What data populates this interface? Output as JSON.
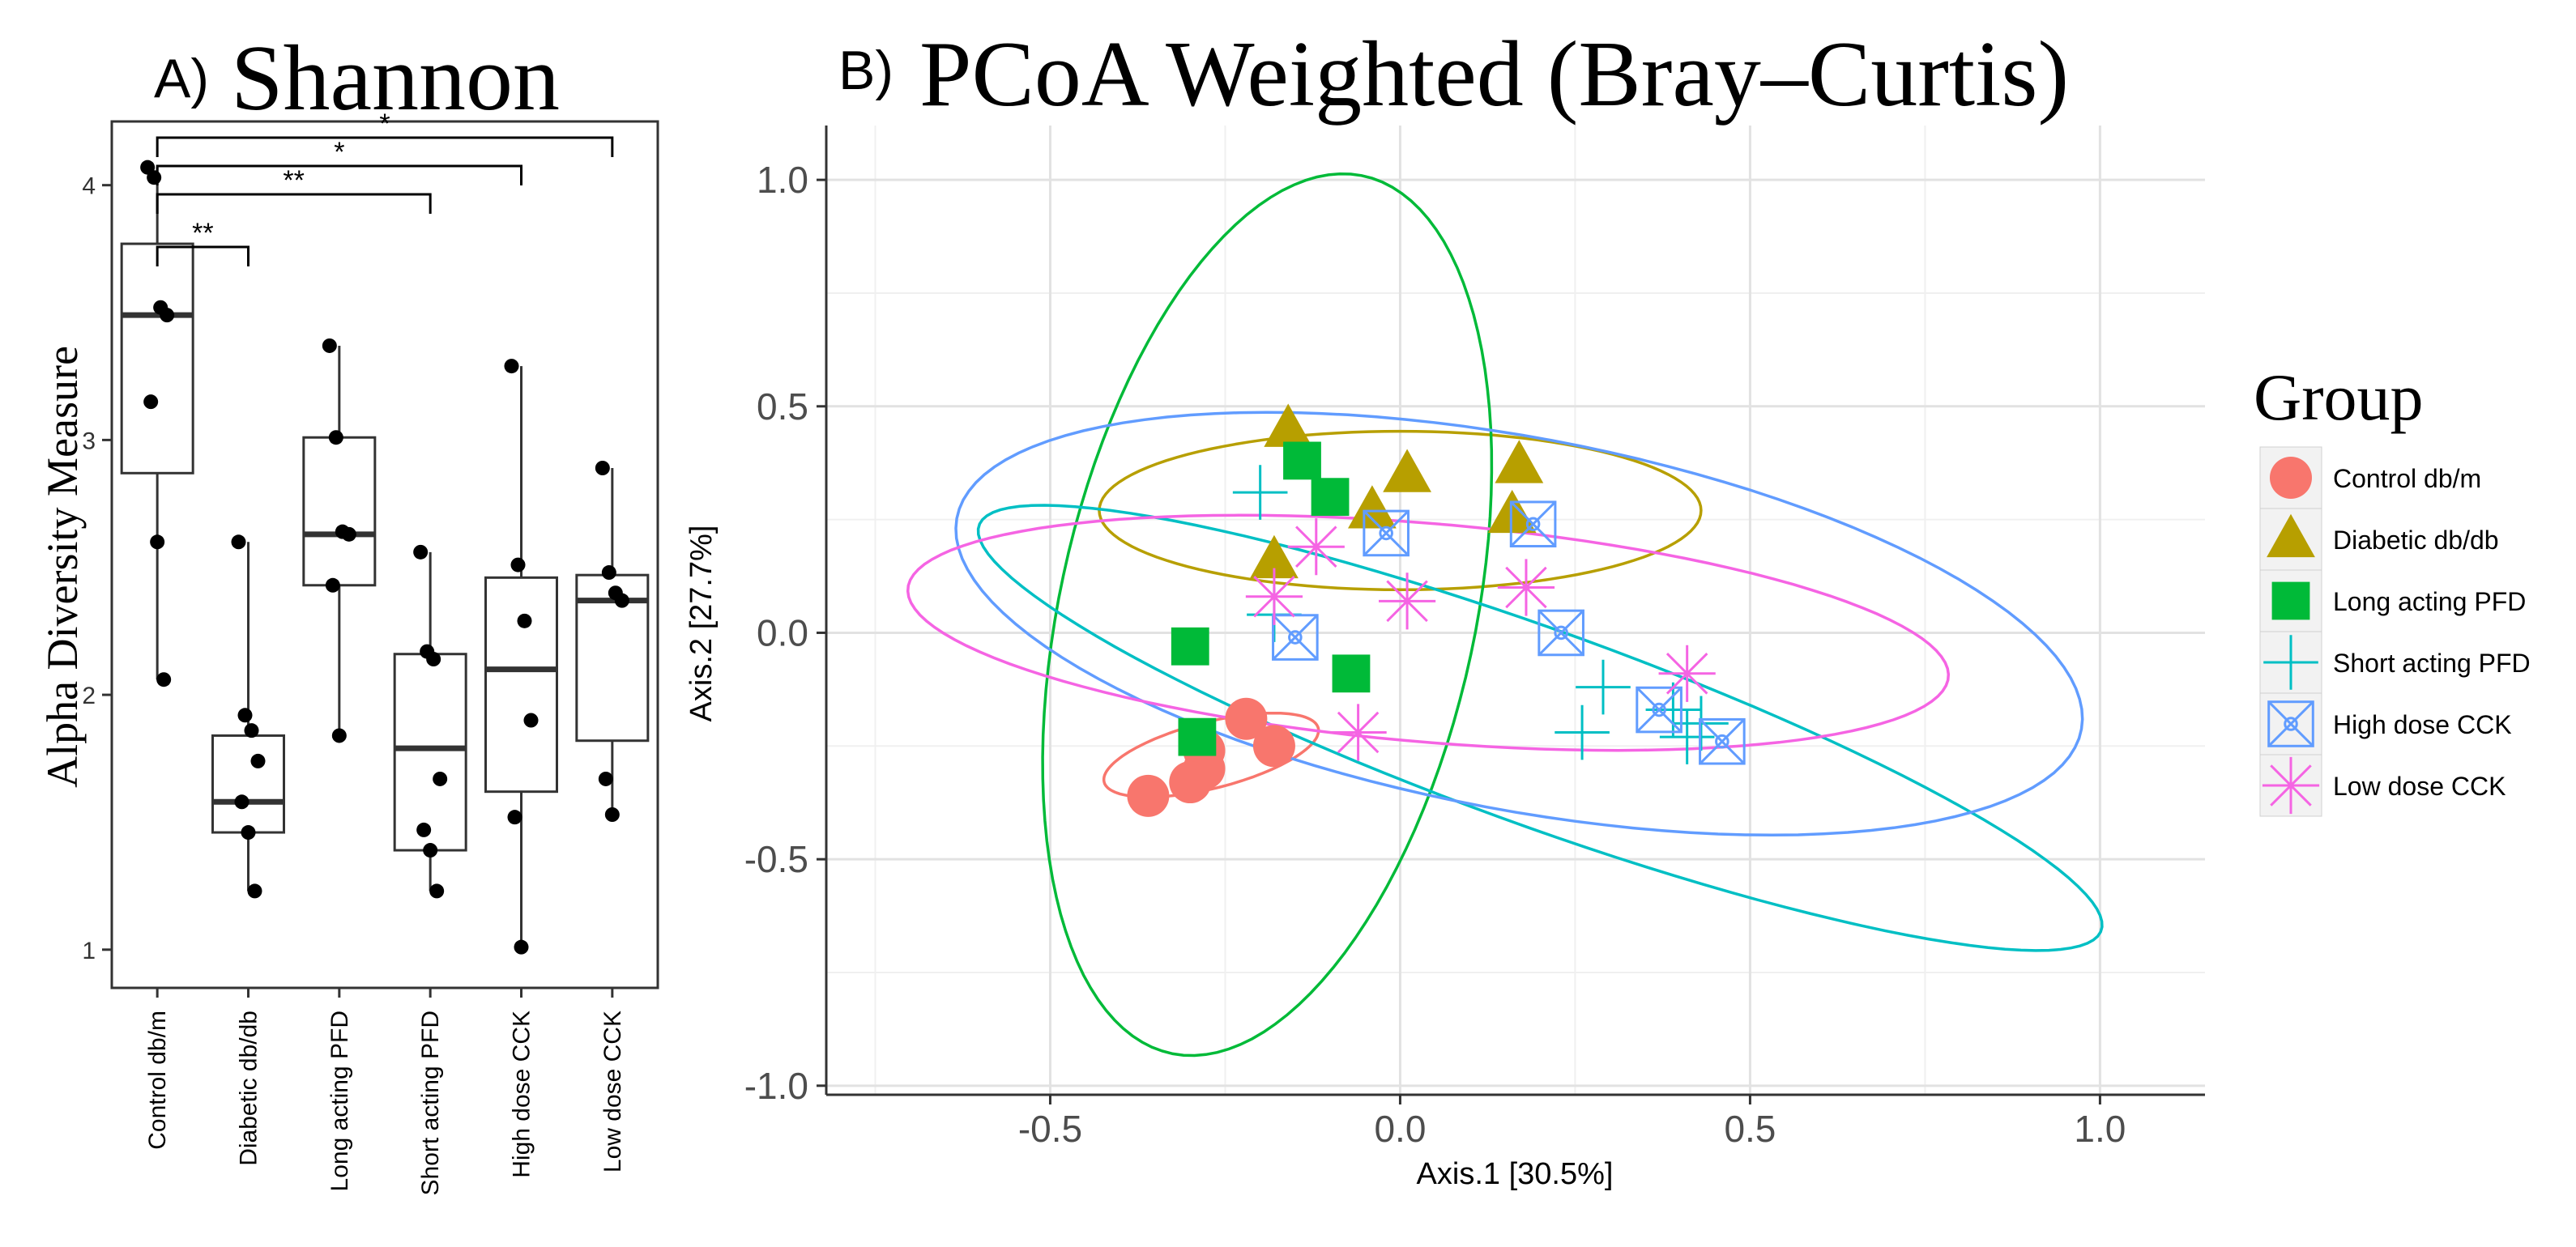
{
  "panel_a": {
    "letter": "A)",
    "title": "Shannon",
    "ylabel": "Alpha Diversity Measure"
  },
  "panel_b": {
    "letter": "B)",
    "title": "PCoA Weighted (Bray–Curtis)",
    "xlabel": "Axis.1   [30.5%]",
    "ylabel": "Axis.2   [27.7%]",
    "legend_title": "Group"
  },
  "colors": {
    "control": "#F8766D",
    "diabetic": "#B79F00",
    "long": "#00BA38",
    "short": "#00BFC4",
    "high": "#619CFF",
    "low": "#F564E3"
  },
  "chart_data": [
    {
      "type": "box",
      "title": "Shannon",
      "ylabel": "Alpha Diversity Measure",
      "ylim": [
        0.85,
        4.25
      ],
      "yticks": [
        1,
        2,
        3,
        4
      ],
      "categories": [
        "Control db/m",
        "Diabetic db/db",
        "Long acting PFD",
        "Short acting PFD",
        "High dose CCK",
        "Low dose CCK"
      ],
      "boxes": [
        {
          "q1": 2.87,
          "median": 3.49,
          "q3": 3.77,
          "whisker_low": 2.06,
          "whisker_high": 4.07
        },
        {
          "q1": 1.46,
          "median": 1.58,
          "q3": 1.84,
          "whisker_low": 1.23,
          "whisker_high": 2.6
        },
        {
          "q1": 2.43,
          "median": 2.63,
          "q3": 3.01,
          "whisker_low": 1.84,
          "whisker_high": 3.37
        },
        {
          "q1": 1.39,
          "median": 1.79,
          "q3": 2.16,
          "whisker_low": 1.23,
          "whisker_high": 2.56
        },
        {
          "q1": 1.62,
          "median": 2.1,
          "q3": 2.46,
          "whisker_low": 1.01,
          "whisker_high": 3.29
        },
        {
          "q1": 1.82,
          "median": 2.37,
          "q3": 2.47,
          "whisker_low": 1.53,
          "whisker_high": 2.89
        }
      ],
      "points": [
        [
          4.07,
          4.03,
          3.52,
          3.49,
          3.15,
          2.6,
          2.06
        ],
        [
          2.6,
          1.92,
          1.86,
          1.74,
          1.58,
          1.46,
          1.23
        ],
        [
          3.37,
          3.01,
          2.64,
          2.63,
          2.43,
          1.84
        ],
        [
          2.56,
          2.17,
          2.14,
          1.67,
          1.47,
          1.39,
          1.23
        ],
        [
          3.29,
          2.51,
          2.29,
          1.9,
          1.52,
          1.01
        ],
        [
          2.89,
          2.48,
          2.4,
          2.37,
          1.67,
          1.53
        ]
      ],
      "significance": [
        {
          "from": 0,
          "to": 1,
          "label": "**"
        },
        {
          "from": 0,
          "to": 3,
          "label": "**"
        },
        {
          "from": 0,
          "to": 4,
          "label": "*"
        },
        {
          "from": 0,
          "to": 5,
          "label": "*"
        }
      ]
    },
    {
      "type": "scatter",
      "title": "PCoA Weighted (Bray–Curtis)",
      "xlabel": "Axis.1   [30.5%]",
      "ylabel": "Axis.2   [27.7%]",
      "xlim": [
        -0.82,
        1.15
      ],
      "ylim": [
        -1.02,
        1.12
      ],
      "xticks": [
        -0.5,
        0.0,
        0.5,
        1.0
      ],
      "xtick_labels": [
        "-0.5",
        "0.0",
        "0.5",
        "1.0"
      ],
      "yticks": [
        -1.0,
        -0.5,
        0.0,
        0.5,
        1.0
      ],
      "ytick_labels": [
        "-1.0",
        "-0.5",
        "0.0",
        "0.5",
        "1.0"
      ],
      "grid": true,
      "legend_title": "Group",
      "legend_position": "right",
      "series": [
        {
          "name": "Control db/m",
          "key": "control",
          "shape": "circle",
          "points": [
            [
              -0.28,
              -0.26
            ],
            [
              -0.22,
              -0.19
            ],
            [
              -0.18,
              -0.25
            ],
            [
              -0.28,
              -0.3
            ],
            [
              -0.36,
              -0.36
            ],
            [
              -0.3,
              -0.33
            ]
          ],
          "ellipse": {
            "cx": -0.27,
            "cy": -0.27,
            "rx": 0.165,
            "ry": 0.07,
            "angle": 24
          }
        },
        {
          "name": "Diabetic db/db",
          "key": "diabetic",
          "shape": "triangle",
          "points": [
            [
              -0.16,
              0.45
            ],
            [
              0.01,
              0.35
            ],
            [
              -0.04,
              0.27
            ],
            [
              0.17,
              0.37
            ],
            [
              0.16,
              0.26
            ],
            [
              -0.18,
              0.16
            ]
          ],
          "ellipse": {
            "cx": 0.0,
            "cy": 0.27,
            "rx": 0.43,
            "ry": 0.175,
            "angle": 0
          }
        },
        {
          "name": "Long acting PFD",
          "key": "long",
          "shape": "square",
          "points": [
            [
              -0.14,
              0.38
            ],
            [
              -0.1,
              0.3
            ],
            [
              -0.3,
              -0.03
            ],
            [
              -0.07,
              -0.09
            ],
            [
              -0.29,
              -0.23
            ]
          ],
          "ellipse": {
            "cx": -0.19,
            "cy": 0.04,
            "rx": 0.98,
            "ry": 0.3,
            "angle": 83
          }
        },
        {
          "name": "Short acting PFD",
          "key": "short",
          "shape": "plus",
          "points": [
            [
              -0.2,
              0.31
            ],
            [
              -0.18,
              0.04
            ],
            [
              0.29,
              -0.12
            ],
            [
              0.26,
              -0.22
            ],
            [
              0.39,
              -0.17
            ],
            [
              0.43,
              -0.2
            ],
            [
              0.41,
              -0.23
            ]
          ],
          "ellipse": {
            "cx": 0.2,
            "cy": -0.21,
            "rx": 0.92,
            "ry": 0.2,
            "angle": -30
          }
        },
        {
          "name": "High dose CCK",
          "key": "high",
          "shape": "boxx",
          "points": [
            [
              -0.02,
              0.22
            ],
            [
              0.19,
              0.24
            ],
            [
              0.23,
              0.0
            ],
            [
              -0.15,
              -0.01
            ],
            [
              0.37,
              -0.17
            ],
            [
              0.46,
              -0.24
            ]
          ],
          "ellipse": {
            "cx": 0.17,
            "cy": 0.02,
            "rx": 0.84,
            "ry": 0.4,
            "angle": -19
          }
        },
        {
          "name": "Low dose CCK",
          "key": "low",
          "shape": "star",
          "points": [
            [
              -0.12,
              0.19
            ],
            [
              -0.18,
              0.08
            ],
            [
              0.01,
              0.07
            ],
            [
              0.18,
              0.1
            ],
            [
              -0.06,
              -0.22
            ],
            [
              0.41,
              -0.09
            ]
          ],
          "ellipse": {
            "cx": 0.04,
            "cy": 0.0,
            "rx": 0.75,
            "ry": 0.24,
            "angle": -8
          }
        }
      ]
    }
  ]
}
